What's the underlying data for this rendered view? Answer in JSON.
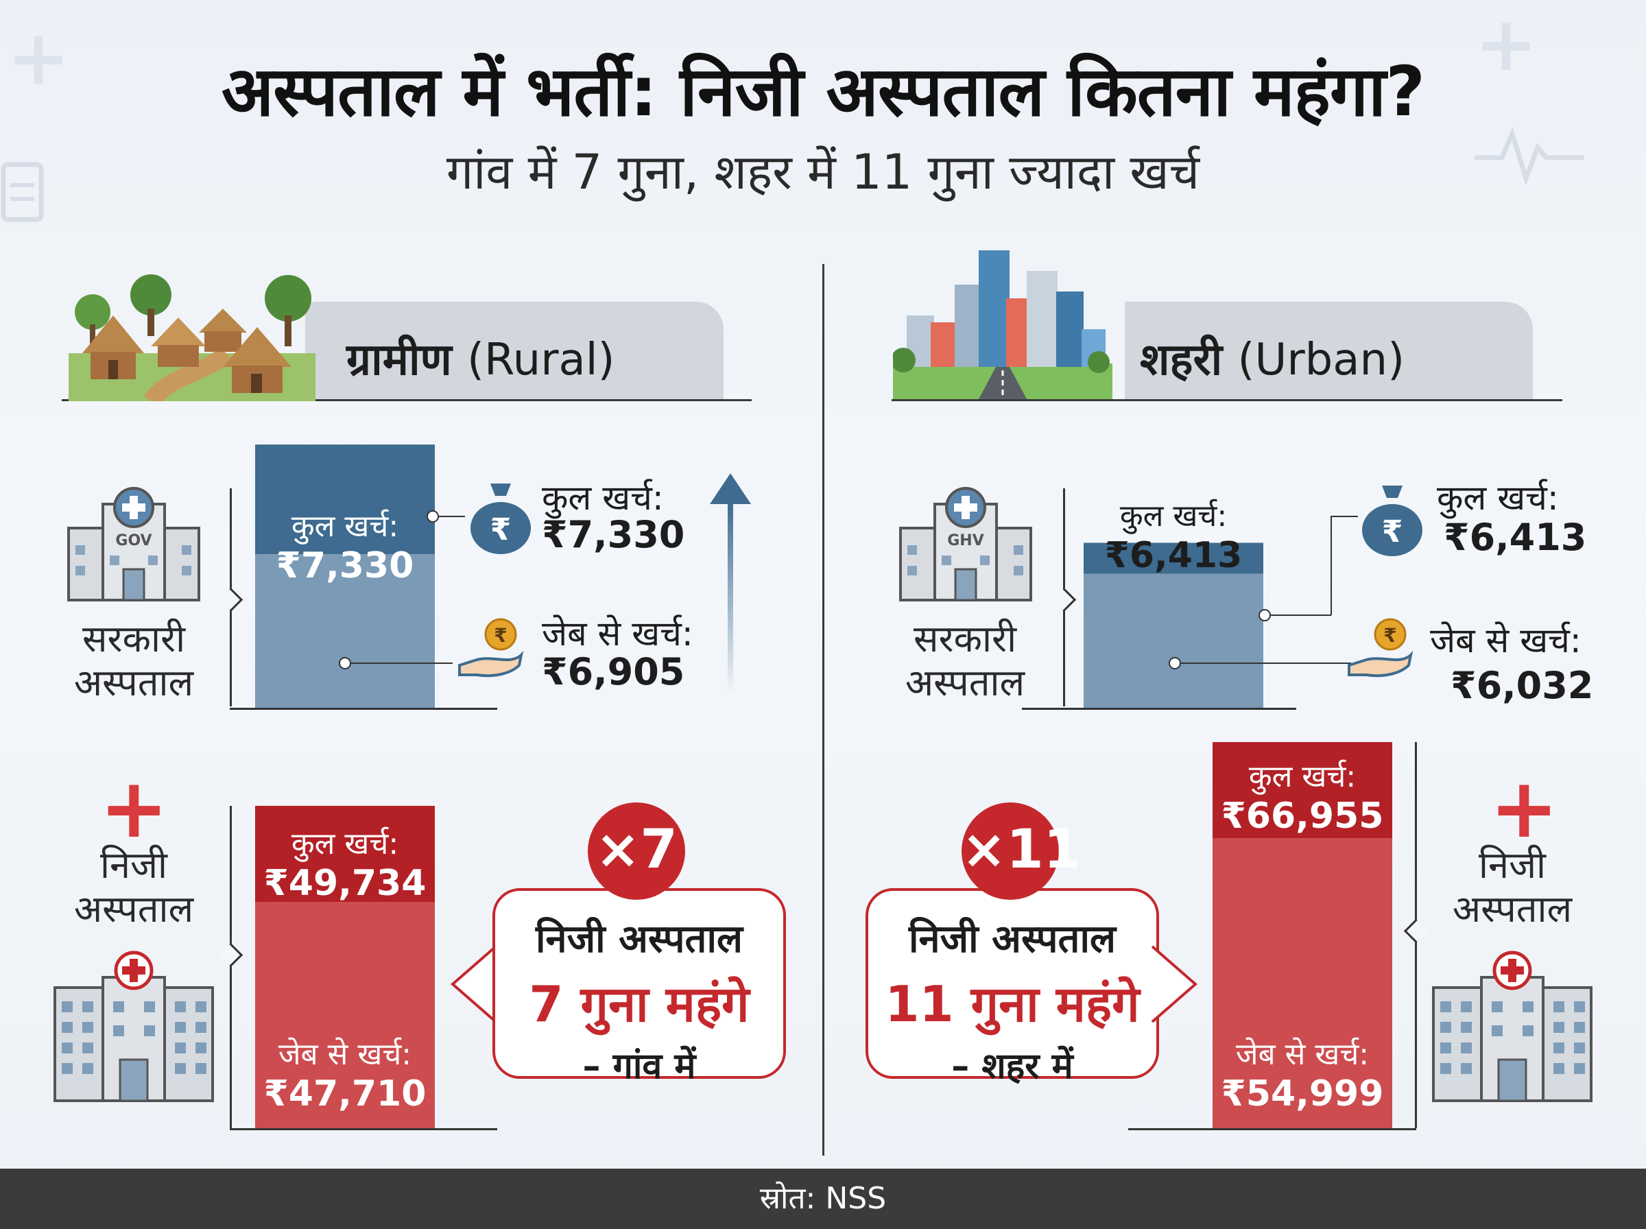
{
  "header": {
    "title": "अस्पताल में भर्ती: निजी अस्पताल कितना महंगा?",
    "subtitle": "गांव में 7 गुना, शहर में 11 गुना ज्यादा खर्च"
  },
  "colors": {
    "govt_total": "#3e6b8f",
    "govt_oop": "#7a9ab6",
    "private_total": "#b32127",
    "private_oop": "#cc4c4f",
    "accent_red": "#c4282c",
    "footer_bg": "#3b3b3b"
  },
  "chart_data": [
    {
      "type": "bar",
      "title": "ग्रामीण (Rural)",
      "categories": [
        "सरकारी अस्पताल",
        "निजी अस्पताल"
      ],
      "series": [
        {
          "name": "कुल खर्च",
          "values": [
            7330,
            49734
          ]
        },
        {
          "name": "जेब से खर्च",
          "values": [
            6905,
            47710
          ]
        }
      ],
      "unit": "₹"
    },
    {
      "type": "bar",
      "title": "शहरी (Urban)",
      "categories": [
        "सरकारी अस्पताल",
        "निजी अस्पताल"
      ],
      "series": [
        {
          "name": "कुल खर्च",
          "values": [
            6413,
            66955
          ]
        },
        {
          "name": "जेब से खर्च",
          "values": [
            6032,
            54999
          ]
        }
      ],
      "unit": "₹"
    }
  ],
  "rural": {
    "heading_hi": "ग्रामीण",
    "heading_en": "(Rural)",
    "govt": {
      "label_line1": "सरकारी",
      "label_line2": "अस्पताल",
      "building_sign": "GOV",
      "bar_total_label": "कुल खर्च:",
      "bar_total_value": "₹7,330",
      "side_total_label": "कुल खर्च:",
      "side_total_value": "₹7,330",
      "side_oop_label": "जेब से खर्च:",
      "side_oop_value": "₹6,905"
    },
    "private": {
      "label_line1": "निजी",
      "label_line2": "अस्पताल",
      "bar_total_label": "कुल खर्च:",
      "bar_total_value": "₹49,734",
      "bar_oop_label": "जेब से खर्च:",
      "bar_oop_value": "₹47,710"
    },
    "multiplier": "×7",
    "callout_line1": "निजी अस्पताल",
    "callout_line2": "7 गुना महंगे",
    "callout_line3": "– गांव में"
  },
  "urban": {
    "heading_hi": "शहरी",
    "heading_en": "(Urban)",
    "govt": {
      "label_line1": "सरकारी",
      "label_line2": "अस्पताल",
      "building_sign": "GHV",
      "bar_total_label": "कुल खर्च:",
      "bar_total_value": "₹6,413",
      "side_total_label": "कुल खर्च:",
      "side_total_value": "₹6,413",
      "side_oop_label": "जेब से खर्च:",
      "side_oop_value": "₹6,032"
    },
    "private": {
      "label_line1": "निजी",
      "label_line2": "अस्पताल",
      "bar_total_label": "कुल खर्च:",
      "bar_total_value": "₹66,955",
      "bar_oop_label": "जेब से खर्च:",
      "bar_oop_value": "₹54,999"
    },
    "multiplier": "×11",
    "callout_line1": "निजी अस्पताल",
    "callout_line2": "11 गुना महंगे",
    "callout_line3": "– शहर में"
  },
  "icons": {
    "rupee_symbol": "₹",
    "plus": "+"
  },
  "footer": {
    "source": "स्रोत: NSS"
  }
}
